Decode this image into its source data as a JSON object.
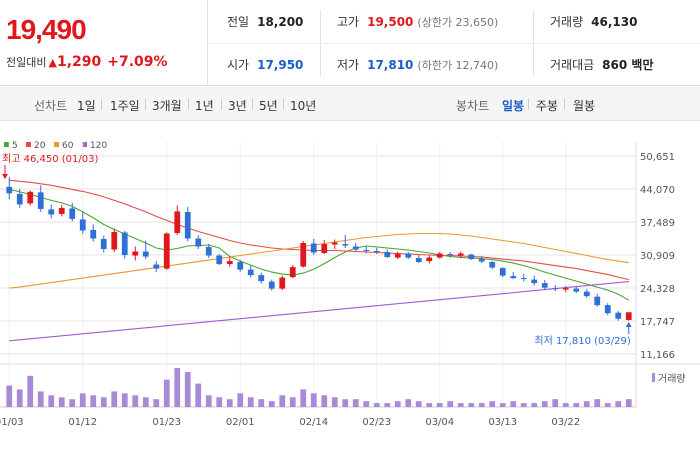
{
  "price": {
    "current": "19,490",
    "change_label": "전일대비",
    "change_arrow": "▲",
    "change_value": "1,290",
    "change_pct": "+7.09%"
  },
  "info": {
    "prev_close_label": "전일",
    "prev_close": "18,200",
    "high_label": "고가",
    "high": "19,500",
    "upper_limit": "(상한가 23,650)",
    "volume_label": "거래량",
    "volume": "46,130",
    "open_label": "시가",
    "open": "17,950",
    "low_label": "저가",
    "low": "17,810",
    "lower_limit": "(하한가 12,740)",
    "turnover_label": "거래대금",
    "turnover": "860 백만"
  },
  "toolbar": {
    "period_label": "선차트",
    "periods": [
      "1일",
      "1주일",
      "3개월",
      "1년",
      "3년",
      "5년",
      "10년"
    ],
    "candle_label": "봉차트",
    "candles": [
      "일봉",
      "주봉",
      "월봉"
    ],
    "active_candle": "일봉"
  },
  "legend": [
    {
      "label": "5",
      "color": "#43a832"
    },
    {
      "label": "20",
      "color": "#e84a4a"
    },
    {
      "label": "60",
      "color": "#f0962d"
    },
    {
      "label": "120",
      "color": "#9c5ed3"
    }
  ],
  "colors": {
    "up": "#e0181e",
    "down": "#2f6fd6",
    "volume": "#a98ad6",
    "grid": "#e6e6e6"
  },
  "annotations": {
    "high": "최고 46,450 (01/03)",
    "low": "최저 17,810 (03/29)"
  },
  "volume_legend": "거래량",
  "chart_data": {
    "type": "candlestick",
    "y_ticks": [
      "50,651",
      "44,070",
      "37,489",
      "30,909",
      "24,328",
      "17,747",
      "11,166"
    ],
    "ylim": [
      11166,
      50651
    ],
    "x_ticks": [
      "01/03",
      "01/12",
      "01/23",
      "02/01",
      "02/14",
      "02/23",
      "03/04",
      "03/13",
      "03/22"
    ],
    "x_tick_index": [
      0,
      7,
      15,
      22,
      29,
      35,
      41,
      47,
      53
    ],
    "candles": [
      [
        44500,
        46450,
        42000,
        43200
      ],
      [
        43100,
        44100,
        40300,
        41000
      ],
      [
        41200,
        43800,
        40800,
        43500
      ],
      [
        43400,
        44800,
        39500,
        40100
      ],
      [
        40000,
        41000,
        38200,
        39000
      ],
      [
        39100,
        40900,
        38600,
        40300
      ],
      [
        40200,
        41300,
        37600,
        38100
      ],
      [
        38000,
        39500,
        35100,
        35800
      ],
      [
        35900,
        37000,
        33600,
        34200
      ],
      [
        34100,
        34800,
        31400,
        32100
      ],
      [
        32000,
        36200,
        31500,
        35500
      ],
      [
        35400,
        35700,
        30200,
        30900
      ],
      [
        30800,
        32600,
        29800,
        31600
      ],
      [
        31600,
        33800,
        30100,
        30600
      ],
      [
        29000,
        29700,
        27500,
        28200
      ],
      [
        28200,
        35400,
        27900,
        35200
      ],
      [
        35300,
        40800,
        34900,
        39600
      ],
      [
        39500,
        40500,
        33700,
        34200
      ],
      [
        34200,
        34900,
        32100,
        32600
      ],
      [
        32500,
        33100,
        30300,
        30800
      ],
      [
        30800,
        31100,
        28900,
        29100
      ],
      [
        29100,
        30600,
        28600,
        29700
      ],
      [
        29500,
        29900,
        27600,
        28000
      ],
      [
        28000,
        28800,
        26400,
        26900
      ],
      [
        26900,
        27400,
        25200,
        25700
      ],
      [
        25600,
        26000,
        23800,
        24200
      ],
      [
        24200,
        26800,
        23900,
        26400
      ],
      [
        26500,
        28900,
        26300,
        28500
      ],
      [
        28600,
        33700,
        28400,
        33300
      ],
      [
        33200,
        34100,
        30900,
        31400
      ],
      [
        31300,
        33900,
        31100,
        33100
      ],
      [
        33000,
        34000,
        32100,
        33400
      ],
      [
        33100,
        34900,
        32300,
        32800
      ],
      [
        32600,
        33300,
        31700,
        32000
      ],
      [
        31900,
        32600,
        31200,
        31700
      ],
      [
        31700,
        32300,
        31100,
        31500
      ],
      [
        31500,
        32000,
        30300,
        30500
      ],
      [
        30400,
        31600,
        30100,
        31200
      ],
      [
        31200,
        31500,
        30100,
        30400
      ],
      [
        30300,
        30900,
        29300,
        29500
      ],
      [
        29700,
        30800,
        29200,
        30400
      ],
      [
        30400,
        31500,
        30200,
        31200
      ],
      [
        31100,
        31500,
        30400,
        30900
      ],
      [
        30800,
        31600,
        30300,
        31200
      ],
      [
        31000,
        31100,
        29900,
        30100
      ],
      [
        30100,
        30700,
        29300,
        29600
      ],
      [
        29500,
        29700,
        28100,
        28400
      ],
      [
        28300,
        28500,
        26500,
        26800
      ],
      [
        26700,
        27500,
        26100,
        26300
      ],
      [
        26300,
        27200,
        25600,
        26100
      ],
      [
        26000,
        26800,
        24800,
        25300
      ],
      [
        25300,
        25900,
        23900,
        24400
      ],
      [
        24300,
        24900,
        23700,
        24100
      ],
      [
        24000,
        24700,
        23500,
        24300
      ],
      [
        24200,
        24600,
        23300,
        23600
      ],
      [
        23600,
        24100,
        22400,
        22700
      ],
      [
        22600,
        23200,
        20600,
        20900
      ],
      [
        20900,
        21300,
        18900,
        19300
      ],
      [
        19400,
        19700,
        17810,
        18200
      ],
      [
        17950,
        19500,
        17810,
        19490
      ]
    ],
    "volume_rel": [
      0.55,
      0.45,
      0.8,
      0.4,
      0.3,
      0.25,
      0.2,
      0.35,
      0.3,
      0.25,
      0.4,
      0.35,
      0.3,
      0.25,
      0.2,
      0.7,
      1.0,
      0.9,
      0.6,
      0.3,
      0.25,
      0.2,
      0.35,
      0.25,
      0.2,
      0.15,
      0.3,
      0.25,
      0.45,
      0.35,
      0.3,
      0.25,
      0.2,
      0.2,
      0.15,
      0.1,
      0.1,
      0.15,
      0.2,
      0.15,
      0.1,
      0.1,
      0.15,
      0.1,
      0.1,
      0.1,
      0.15,
      0.1,
      0.15,
      0.1,
      0.1,
      0.15,
      0.2,
      0.1,
      0.1,
      0.15,
      0.2,
      0.1,
      0.15,
      0.2
    ],
    "ma": {
      "5": [
        44000,
        43500,
        43000,
        42400,
        41800,
        41300,
        40600,
        39500,
        38300,
        37000,
        36000,
        35100,
        34200,
        33300,
        32300,
        31900,
        32200,
        32700,
        32800,
        32900,
        32300,
        30600,
        29700,
        28900,
        28100,
        27500,
        27100,
        26900,
        27300,
        28100,
        29200,
        30400,
        31500,
        32300,
        32700,
        32500,
        32300,
        32100,
        31900,
        31600,
        31300,
        30900,
        30600,
        30400,
        30300,
        30200,
        30000,
        29700,
        29300,
        28800,
        28200,
        27500,
        26900,
        26300,
        25700,
        25100,
        24500,
        23900,
        23100,
        21900
      ],
      "20": [
        45800,
        45600,
        45400,
        45100,
        44800,
        44400,
        44000,
        43600,
        43100,
        42500,
        41800,
        41100,
        40300,
        39500,
        38600,
        37800,
        37000,
        36300,
        35600,
        35000,
        34400,
        33800,
        33300,
        32900,
        32600,
        32300,
        32100,
        32000,
        31900,
        31800,
        31800,
        31800,
        31700,
        31600,
        31500,
        31400,
        31300,
        31200,
        31100,
        31000,
        30900,
        30800,
        30800,
        30700,
        30600,
        30500,
        30300,
        30100,
        29900,
        29700,
        29400,
        29100,
        28800,
        28500,
        28200,
        27800,
        27400,
        27000,
        26500,
        26000
      ],
      "60": [
        24300,
        24500,
        24800,
        25100,
        25400,
        25700,
        26000,
        26300,
        26600,
        26900,
        27200,
        27500,
        27800,
        28100,
        28400,
        28700,
        29000,
        29300,
        29600,
        29900,
        30200,
        30500,
        30800,
        31100,
        31400,
        31700,
        32000,
        32300,
        32600,
        32900,
        33200,
        33500,
        33800,
        34100,
        34400,
        34600,
        34800,
        35000,
        35100,
        35200,
        35200,
        35200,
        35100,
        34900,
        34700,
        34400,
        34100,
        33800,
        33500,
        33200,
        32800,
        32400,
        32000,
        31600,
        31200,
        30800,
        30400,
        30000,
        29700,
        29400
      ],
      "120": [
        13800,
        14000,
        14200,
        14400,
        14600,
        14800,
        15000,
        15200,
        15400,
        15600,
        15800,
        16000,
        16200,
        16400,
        16600,
        16800,
        17000,
        17200,
        17400,
        17600,
        17800,
        18000,
        18200,
        18400,
        18600,
        18800,
        19000,
        19200,
        19400,
        19600,
        19800,
        20000,
        20200,
        20400,
        20600,
        20800,
        21000,
        21200,
        21400,
        21600,
        21800,
        22000,
        22200,
        22400,
        22600,
        22800,
        23000,
        23200,
        23400,
        23600,
        23800,
        24000,
        24200,
        24400,
        24600,
        24800,
        25000,
        25200,
        25400,
        25600
      ]
    }
  }
}
